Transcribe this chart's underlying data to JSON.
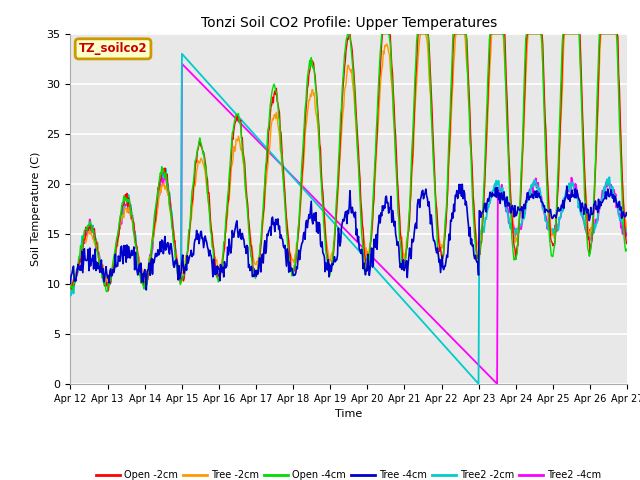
{
  "title": "Tonzi Soil CO2 Profile: Upper Temperatures",
  "xlabel": "Time",
  "ylabel": "Soil Temperature (C)",
  "ylim": [
    0,
    35
  ],
  "background_color": "#ffffff",
  "plot_bg": "#e8e8e8",
  "annotation_label": "TZ_soilco2",
  "annotation_box_facecolor": "#ffffcc",
  "annotation_border_color": "#cc9900",
  "annotation_text_color": "#cc0000",
  "x_tick_labels": [
    "Apr 12",
    "Apr 13",
    "Apr 14",
    "Apr 15",
    "Apr 16",
    "Apr 17",
    "Apr 18",
    "Apr 19",
    "Apr 20",
    "Apr 21",
    "Apr 22",
    "Apr 23",
    "Apr 24",
    "Apr 25",
    "Apr 26",
    "Apr 27"
  ],
  "legend_labels": [
    "Open -2cm",
    "Tree -2cm",
    "Open -4cm",
    "Tree -4cm",
    "Tree2 -2cm",
    "Tree2 -4cm"
  ],
  "legend_colors": [
    "#ff0000",
    "#ff9900",
    "#00dd00",
    "#0000cc",
    "#00cccc",
    "#ff00ff"
  ],
  "grid_color": "#ffffff",
  "title_fontsize": 10,
  "tick_fontsize": 7,
  "label_fontsize": 8
}
